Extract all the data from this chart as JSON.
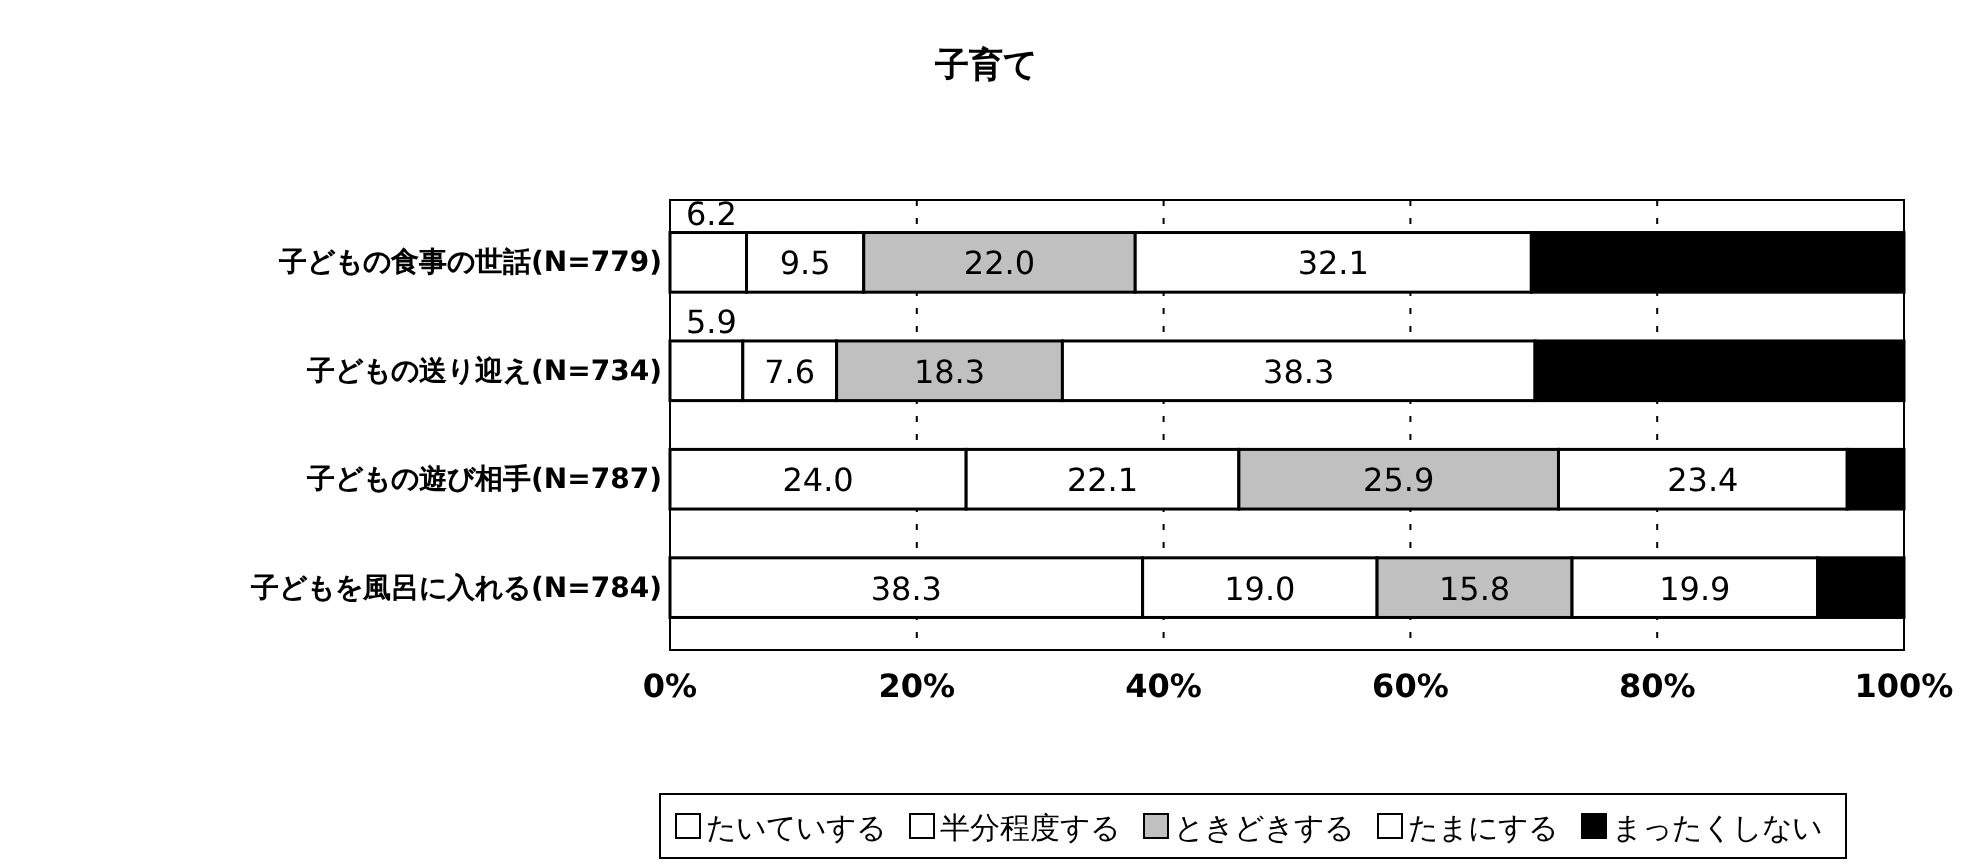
{
  "chart_data": {
    "type": "bar",
    "title": "子育て",
    "orientation": "horizontal",
    "stacked": true,
    "categories": [
      "子どもの食事の世話(N=779)",
      "子どもの送り迎え(N=734)",
      "子どもの遊び相手(N=787)",
      "子どもを風呂に入れる(N=784)"
    ],
    "series": [
      {
        "name": "たいていする",
        "color": "#ffffff",
        "values": [
          6.2,
          5.9,
          24.0,
          38.3
        ],
        "value_labels": [
          "6.2",
          "5.9",
          "24.0",
          "38.3"
        ]
      },
      {
        "name": "半分程度する",
        "color": "#ffffff",
        "values": [
          9.5,
          7.6,
          22.1,
          19.0
        ],
        "value_labels": [
          "9.5",
          "7.6",
          "22.1",
          "19.0"
        ]
      },
      {
        "name": "ときどきする",
        "color": "#c0c0c0",
        "values": [
          22.0,
          18.3,
          25.9,
          15.8
        ],
        "value_labels": [
          "22.0",
          "18.3",
          "25.9",
          "15.8"
        ]
      },
      {
        "name": "たまにする",
        "color": "#ffffff",
        "values": [
          32.1,
          38.3,
          23.4,
          19.9
        ],
        "value_labels": [
          "32.1",
          "38.3",
          "23.4",
          "19.9"
        ]
      },
      {
        "name": "まったくしない",
        "color": "#000000",
        "values": [
          30.2,
          29.9,
          4.6,
          7.0
        ],
        "value_labels": [
          null,
          null,
          null,
          null
        ]
      }
    ],
    "xlim": [
      0,
      100
    ],
    "xticks": [
      {
        "value": 0,
        "label": "0%"
      },
      {
        "value": 20,
        "label": "20%"
      },
      {
        "value": 40,
        "label": "40%"
      },
      {
        "value": 60,
        "label": "60%"
      },
      {
        "value": 80,
        "label": "80%"
      },
      {
        "value": 100,
        "label": "100%"
      }
    ],
    "grid": "x",
    "legend": "bottom"
  }
}
